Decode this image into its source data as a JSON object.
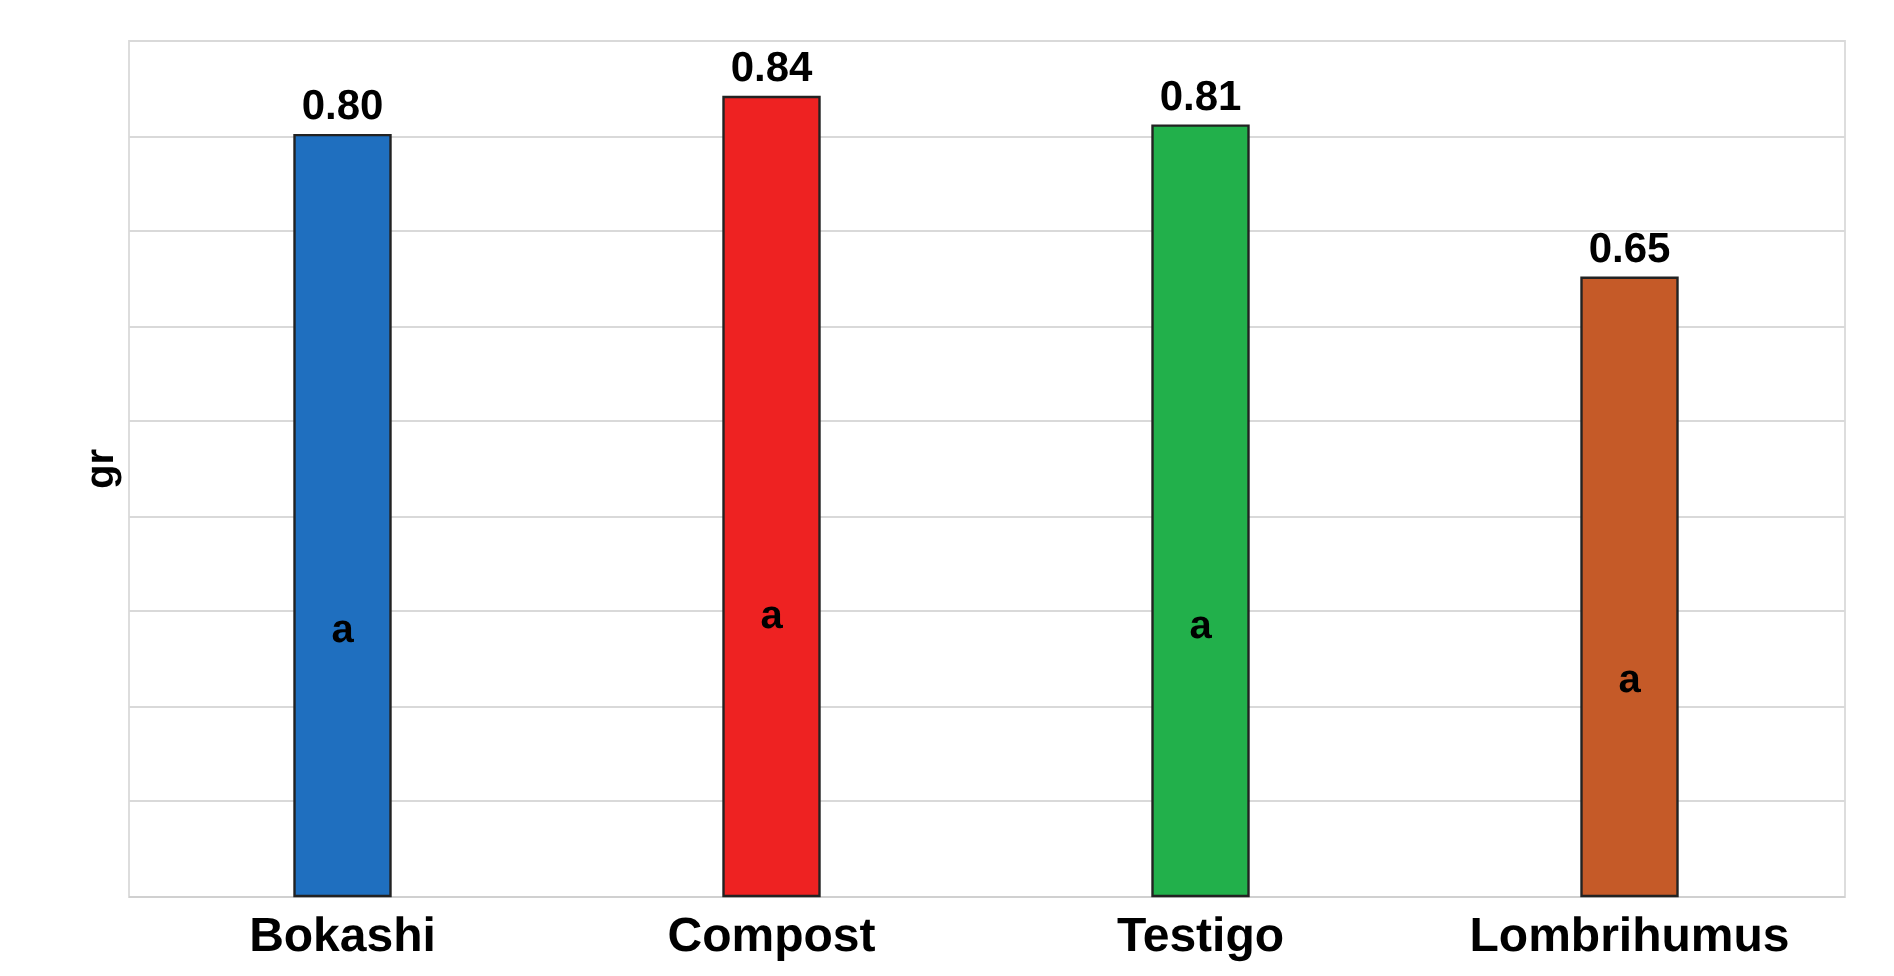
{
  "chart_data": {
    "type": "bar",
    "ylabel": "gr",
    "categories": [
      "Bokashi",
      "Compost",
      "Testigo",
      "Lombrihumus"
    ],
    "values": [
      0.8,
      0.84,
      0.81,
      0.65
    ],
    "colors": [
      "#1f6fbf",
      "#ee2222",
      "#22b04b",
      "#c55a28"
    ],
    "value_labels": [
      "0.80",
      "0.84",
      "0.81",
      "0.65"
    ],
    "annotations": [
      "a",
      "a",
      "a",
      "a"
    ],
    "grid": true
  }
}
